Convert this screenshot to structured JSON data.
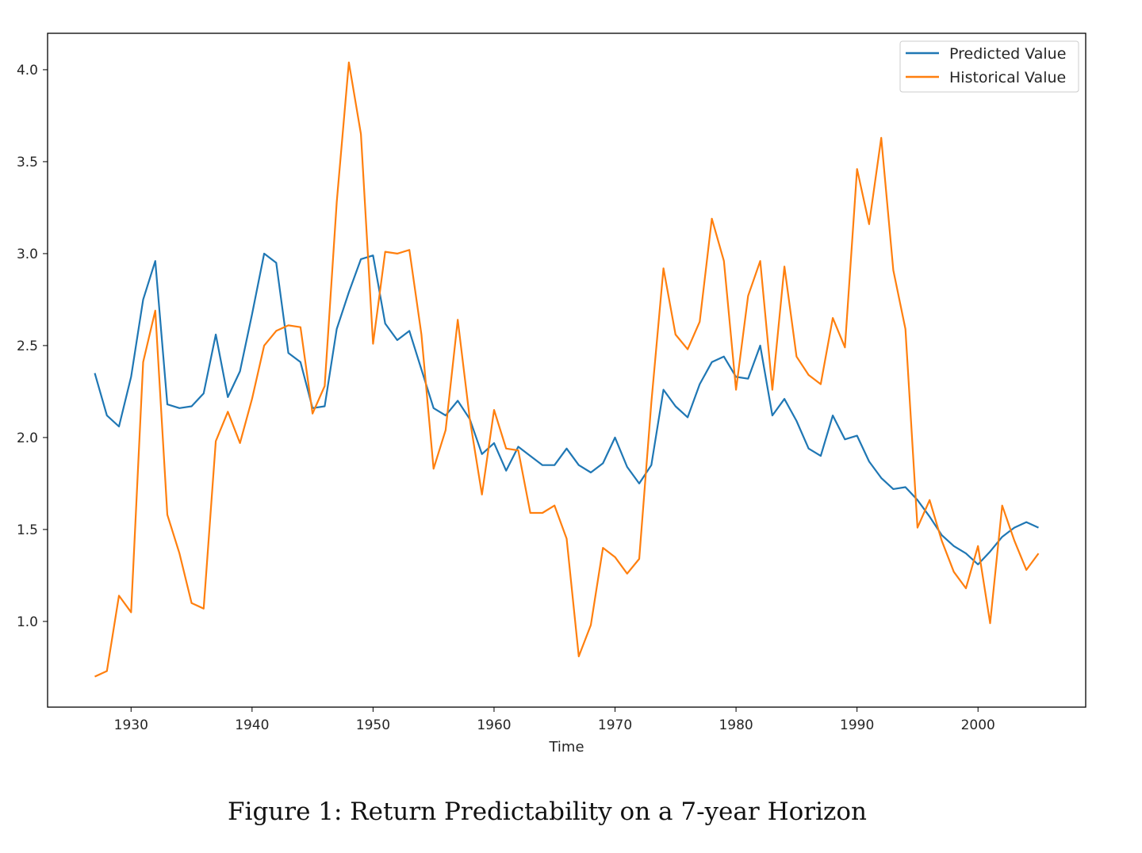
{
  "chart_data": {
    "type": "line",
    "title": "",
    "xlabel": "Time",
    "ylabel": "",
    "xlim": [
      1923.1,
      2008.9
    ],
    "ylim": [
      0.534,
      4.198
    ],
    "xticks": [
      1930,
      1940,
      1950,
      1960,
      1970,
      1980,
      1990,
      2000
    ],
    "yticks": [
      1.0,
      1.5,
      2.0,
      2.5,
      3.0,
      3.5,
      4.0
    ],
    "ytick_labels": [
      "1.0",
      "1.5",
      "2.0",
      "2.5",
      "3.0",
      "3.5",
      "4.0"
    ],
    "grid": false,
    "legend_placement": "top-right",
    "x_start": 1927,
    "series": [
      {
        "name": "Predicted Value",
        "color": "#1f77b4",
        "values": [
          2.35,
          2.12,
          2.06,
          2.33,
          2.75,
          2.96,
          2.18,
          2.16,
          2.17,
          2.24,
          2.56,
          2.22,
          2.36,
          2.67,
          3.0,
          2.95,
          2.46,
          2.41,
          2.16,
          2.17,
          2.59,
          2.79,
          2.97,
          2.99,
          2.62,
          2.53,
          2.58,
          2.37,
          2.16,
          2.12,
          2.2,
          2.1,
          1.91,
          1.97,
          1.82,
          1.95,
          1.9,
          1.85,
          1.85,
          1.94,
          1.85,
          1.81,
          1.86,
          2.0,
          1.84,
          1.75,
          1.85,
          2.26,
          2.17,
          2.11,
          2.29,
          2.41,
          2.44,
          2.33,
          2.32,
          2.5,
          2.12,
          2.21,
          2.09,
          1.94,
          1.9,
          2.12,
          1.99,
          2.01,
          1.87,
          1.78,
          1.72,
          1.73,
          1.66,
          1.57,
          1.47,
          1.41,
          1.37,
          1.31,
          1.38,
          1.46,
          1.51,
          1.54,
          1.51
        ]
      },
      {
        "name": "Historical Value",
        "color": "#ff7f0e",
        "values": [
          0.7,
          0.73,
          1.14,
          1.05,
          2.41,
          2.69,
          1.58,
          1.37,
          1.1,
          1.07,
          1.98,
          2.14,
          1.97,
          2.21,
          2.5,
          2.58,
          2.61,
          2.6,
          2.13,
          2.28,
          3.28,
          4.04,
          3.65,
          2.51,
          3.01,
          3.0,
          3.02,
          2.56,
          1.83,
          2.04,
          2.64,
          2.1,
          1.69,
          2.15,
          1.94,
          1.93,
          1.59,
          1.59,
          1.63,
          1.45,
          0.81,
          0.98,
          1.4,
          1.35,
          1.26,
          1.34,
          2.19,
          2.92,
          2.56,
          2.48,
          2.63,
          3.19,
          2.96,
          2.26,
          2.77,
          2.96,
          2.26,
          2.93,
          2.44,
          2.34,
          2.29,
          2.65,
          2.49,
          3.46,
          3.16,
          3.63,
          2.91,
          2.59,
          1.51,
          1.66,
          1.44,
          1.27,
          1.18,
          1.41,
          0.99,
          1.63,
          1.44,
          1.28,
          1.37
        ]
      }
    ]
  },
  "caption": "Figure 1: Return Predictability on a 7-year Horizon"
}
